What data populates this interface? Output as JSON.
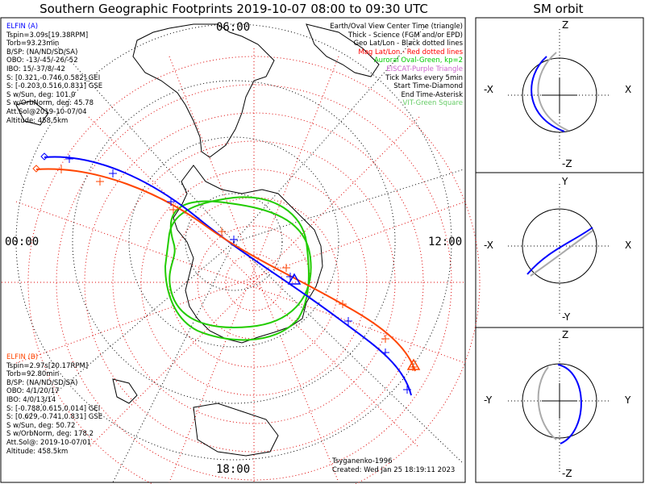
{
  "title": "Southern Geographic Footprints 2019-10-07 08:00 to 09:30 UTC",
  "sm_title": "SM orbit",
  "clock_labels": {
    "top": "06:00",
    "left": "00:00",
    "right": "12:00",
    "bottom": "18:00"
  },
  "elfin_a": {
    "lines": [
      "ELFIN (A)",
      "Tspin=3.09s[19.38RPM]",
      "Torb=93.23min",
      "B/SP: (NA/ND/SD/SA)",
      "OBO: -13/-45/-26/-52",
      "IBO: 15/-37/8/-42",
      "S: [0.321,-0.746,0.582] GEI",
      "S: [-0.203,0.516,0.831] GSE",
      "S w/Sun, deg: 101.0",
      "S w/OrbNorm, deg: 45.78",
      "Att.Sol@2019-10-07/04",
      "Altitude: 458.5km"
    ],
    "color": "#0000ff"
  },
  "elfin_b": {
    "lines": [
      "ELFIN (B)",
      "Tspin=2.97s[20.17RPM]",
      "Torb=92.80min",
      "B/SP: (NA/ND/SD/SA)",
      "OBO: 4/1/20/17",
      "IBO: 4/0/13/14",
      "S: [-0.788,0.615,0.014] GEI",
      "S: [0.629,-0.741,0.831] GSE",
      "S w/Sun, deg: 50.72",
      "S w/OrbNorm, deg: 178.2",
      "Att.Sol@: 2019-10-07/01",
      "Altitude: 458.5km"
    ],
    "color": "#ff4500"
  },
  "legend": [
    {
      "text": "Earth/Oval View Center Time (triangle)",
      "color": "#000000"
    },
    {
      "text": "Thick - Science (FGM and/or EPD)",
      "color": "#000000"
    },
    {
      "text": "Geo Lat/Lon - Black dotted lines",
      "color": "#000000"
    },
    {
      "text": "Mag Lat/Lon - Red dotted lines",
      "color": "#ff0000"
    },
    {
      "text": "Auroral Oval-Green, kp=2",
      "color": "#00cc00"
    },
    {
      "text": "EISCAT-Purple Triangle",
      "color": "#cc66cc"
    },
    {
      "text": "Tick Marks every 5min",
      "color": "#000000"
    },
    {
      "text": "Start Time-Diamond",
      "color": "#000000"
    },
    {
      "text": "End Time-Asterisk",
      "color": "#000000"
    },
    {
      "text": "VIT-Green Square",
      "color": "#66cc66"
    }
  ],
  "footer": {
    "model": "Tsyganenko-1996",
    "created": "Created: Wed Jan 25 18:19:11 2023"
  },
  "sm_panels": [
    {
      "top": "Z",
      "bottom": "-Z",
      "left": "-X",
      "right": "X"
    },
    {
      "top": "Y",
      "bottom": "-Y",
      "left": "-X",
      "right": "X"
    },
    {
      "top": "Z",
      "bottom": "-Z",
      "left": "-Y",
      "right": "Y"
    }
  ],
  "colors": {
    "elfin_a": "#0000ff",
    "elfin_b": "#ff4500",
    "oval": "#22cc00",
    "grid_geo": "#000000",
    "grid_mag": "#dd0000"
  }
}
